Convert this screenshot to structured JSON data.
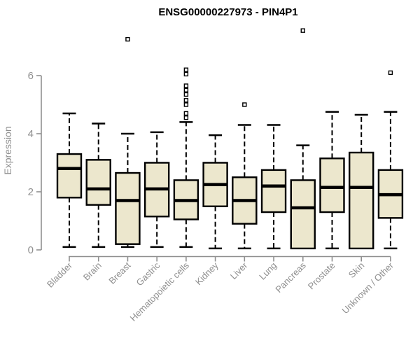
{
  "title": "ENSG00000227973 - PIN4P1",
  "chart_data": {
    "type": "boxplot",
    "title": "ENSG00000227973 - PIN4P1",
    "ylabel": "Expression",
    "xlabel": "",
    "ylim": [
      0,
      6
    ],
    "yticks": [
      0,
      2,
      4,
      6
    ],
    "grid": false,
    "legend": "none",
    "x_label_rotation": 45,
    "categories": [
      "Bladder",
      "Brain",
      "Breast",
      "Gastric",
      "Hematopoietic cells",
      "Kidney",
      "Liver",
      "Lung",
      "Pancreas",
      "Prostate",
      "Skin",
      "Unknown / Other"
    ],
    "series": [
      {
        "category": "Bladder",
        "whisker_low": 0.1,
        "q1": 1.8,
        "median": 2.8,
        "q3": 3.3,
        "whisker_high": 4.7,
        "outliers": []
      },
      {
        "category": "Brain",
        "whisker_low": 0.1,
        "q1": 1.55,
        "median": 2.1,
        "q3": 3.1,
        "whisker_high": 4.35,
        "outliers": []
      },
      {
        "category": "Breast",
        "whisker_low": 0.1,
        "q1": 0.2,
        "median": 1.7,
        "q3": 2.65,
        "whisker_high": 4.0,
        "outliers": [
          7.25
        ]
      },
      {
        "category": "Gastric",
        "whisker_low": 0.1,
        "q1": 1.15,
        "median": 2.1,
        "q3": 3.0,
        "whisker_high": 4.05,
        "outliers": []
      },
      {
        "category": "Hematopoietic cells",
        "whisker_low": 0.1,
        "q1": 1.05,
        "median": 1.7,
        "q3": 2.4,
        "whisker_high": 4.4,
        "outliers": [
          4.55,
          4.7,
          5.0,
          5.15,
          5.35,
          5.5,
          5.65,
          6.05,
          6.2
        ]
      },
      {
        "category": "Kidney",
        "whisker_low": 0.05,
        "q1": 1.5,
        "median": 2.25,
        "q3": 3.0,
        "whisker_high": 3.95,
        "outliers": []
      },
      {
        "category": "Liver",
        "whisker_low": 0.05,
        "q1": 0.9,
        "median": 1.7,
        "q3": 2.5,
        "whisker_high": 4.3,
        "outliers": [
          5.0
        ]
      },
      {
        "category": "Lung",
        "whisker_low": 0.05,
        "q1": 1.3,
        "median": 2.2,
        "q3": 2.75,
        "whisker_high": 4.3,
        "outliers": []
      },
      {
        "category": "Pancreas",
        "whisker_low": 0.05,
        "q1": 0.05,
        "median": 1.45,
        "q3": 2.4,
        "whisker_high": 3.6,
        "outliers": [
          7.55
        ]
      },
      {
        "category": "Prostate",
        "whisker_low": 0.05,
        "q1": 1.3,
        "median": 2.15,
        "q3": 3.15,
        "whisker_high": 4.75,
        "outliers": []
      },
      {
        "category": "Skin",
        "whisker_low": 0.05,
        "q1": 0.05,
        "median": 2.15,
        "q3": 3.35,
        "whisker_high": 4.65,
        "outliers": []
      },
      {
        "category": "Unknown / Other",
        "whisker_low": 0.05,
        "q1": 1.1,
        "median": 1.9,
        "q3": 2.75,
        "whisker_high": 4.75,
        "outliers": [
          6.1
        ]
      }
    ],
    "colors": {
      "box_fill": "#ECE7CD",
      "box_stroke": "#000000",
      "median": "#000000",
      "whisker": "#000000",
      "outlier_stroke": "#000000",
      "outlier_fill": "#ffffff",
      "axis": "#8f8f8f",
      "tick_label": "#8f8f8f",
      "title": "#000000",
      "background": "#ffffff"
    }
  }
}
